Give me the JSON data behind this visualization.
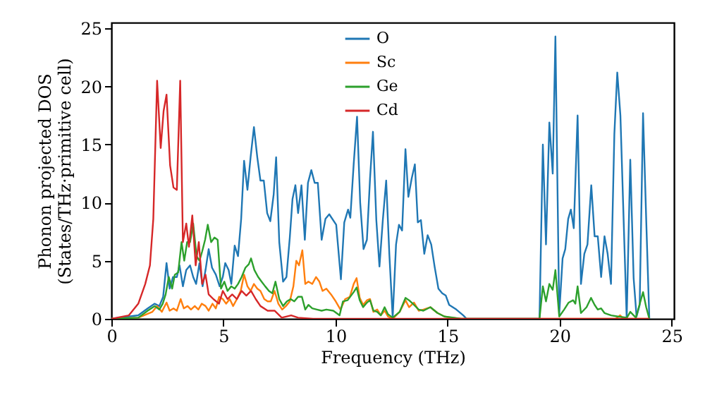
{
  "chart_data": {
    "type": "line",
    "xlabel": "Frequency (THz)",
    "ylabel": "Phonon projected DOS\n(States/THz·primitive cell)",
    "xlim": [
      0,
      25.1
    ],
    "ylim": [
      0,
      25.5
    ],
    "xticks": [
      0,
      5,
      10,
      15,
      20,
      25
    ],
    "yticks": [
      0,
      5,
      10,
      15,
      20,
      25
    ],
    "grid": false,
    "legend": "top",
    "line_style": "solid",
    "marker": "none",
    "series": [
      {
        "name": "O",
        "color": "#1f77b4",
        "x": [
          0,
          1.2,
          1.62,
          1.93,
          2.14,
          2.31,
          2.46,
          2.6,
          2.75,
          2.92,
          3.04,
          3.19,
          3.34,
          3.51,
          3.65,
          3.78,
          3.93,
          4.07,
          4.2,
          4.34,
          4.49,
          4.66,
          4.83,
          4.97,
          5.08,
          5.23,
          5.35,
          5.5,
          5.65,
          5.79,
          5.92,
          6.07,
          6.21,
          6.36,
          6.51,
          6.65,
          6.8,
          6.95,
          7.09,
          7.24,
          7.35,
          7.49,
          7.66,
          7.81,
          7.96,
          8.08,
          8.21,
          8.33,
          8.48,
          8.63,
          8.77,
          8.92,
          9.07,
          9.21,
          9.38,
          9.55,
          9.72,
          10.03,
          10.24,
          10.39,
          10.56,
          10.66,
          10.81,
          10.96,
          11.1,
          11.25,
          11.4,
          11.54,
          11.67,
          11.82,
          11.96,
          12.11,
          12.26,
          12.4,
          12.55,
          12.7,
          12.83,
          12.97,
          13.12,
          13.25,
          13.4,
          13.54,
          13.67,
          13.81,
          13.96,
          14.11,
          14.27,
          14.42,
          14.59,
          14.76,
          14.92,
          15.07,
          15.39,
          15.7,
          15.85,
          19.1,
          19.25,
          19.39,
          19.54,
          19.69,
          19.81,
          19.98,
          20.13,
          20.25,
          20.38,
          20.5,
          20.63,
          20.8,
          20.95,
          21.1,
          21.24,
          21.41,
          21.56,
          21.7,
          21.85,
          22.0,
          22.14,
          22.29,
          22.44,
          22.57,
          22.71,
          22.99,
          23.15,
          23.3,
          23.43,
          23.57,
          23.72,
          23.86,
          24.0
        ],
        "values": [
          0,
          0.3,
          0.9,
          1.3,
          1.1,
          1.9,
          4.8,
          2.6,
          3.6,
          3.6,
          4.6,
          2.8,
          4.2,
          4.6,
          3.6,
          3.0,
          4.8,
          2.8,
          4.2,
          6.0,
          4.4,
          3.8,
          2.8,
          3.6,
          4.8,
          4.2,
          3.0,
          6.3,
          5.4,
          8.6,
          13.6,
          11.1,
          13.9,
          16.5,
          13.9,
          11.9,
          11.9,
          9.1,
          8.4,
          10.7,
          13.9,
          6.6,
          3.2,
          3.6,
          7.0,
          10.3,
          11.5,
          9.1,
          11.5,
          6.8,
          11.7,
          12.8,
          11.7,
          11.7,
          6.8,
          8.6,
          9.0,
          8.1,
          3.4,
          8.3,
          9.4,
          8.7,
          13.3,
          17.4,
          10.0,
          6.0,
          6.8,
          12.1,
          16.1,
          8.5,
          4.5,
          8.5,
          11.9,
          5.6,
          0.1,
          6.4,
          8.1,
          7.6,
          14.6,
          10.5,
          12.1,
          13.3,
          8.3,
          8.5,
          5.6,
          7.2,
          6.4,
          4.5,
          2.6,
          2.2,
          2.0,
          1.2,
          0.8,
          0.3,
          0,
          0,
          15.0,
          6.4,
          16.9,
          12.5,
          24.3,
          0.4,
          5.2,
          6.0,
          8.6,
          9.4,
          7.8,
          17.5,
          3.0,
          5.6,
          6.4,
          11.5,
          7.1,
          7.1,
          3.6,
          7.1,
          5.6,
          3.0,
          15.9,
          21.2,
          17.5,
          0,
          13.7,
          3.5,
          0.2,
          1.2,
          17.7,
          8.6,
          0
        ]
      },
      {
        "name": "Sc",
        "color": "#ff7f0e",
        "x": [
          0,
          1.2,
          1.83,
          2.04,
          2.25,
          2.46,
          2.6,
          2.77,
          2.92,
          3.09,
          3.23,
          3.4,
          3.55,
          3.72,
          3.88,
          4.03,
          4.2,
          4.34,
          4.51,
          4.66,
          4.81,
          4.97,
          5.12,
          5.28,
          5.43,
          5.6,
          5.77,
          5.92,
          6.07,
          6.21,
          6.36,
          6.51,
          6.65,
          6.82,
          6.97,
          7.11,
          7.28,
          7.45,
          7.62,
          7.79,
          7.96,
          8.12,
          8.25,
          8.37,
          8.52,
          8.65,
          8.79,
          8.96,
          9.13,
          9.28,
          9.42,
          9.59,
          9.8,
          10.01,
          10.22,
          10.43,
          10.64,
          10.81,
          10.94,
          11.08,
          11.23,
          11.4,
          11.54,
          11.69,
          11.86,
          12.02,
          12.19,
          12.34,
          12.55,
          12.86,
          13.12,
          13.28,
          13.5,
          13.71,
          13.92,
          14.23,
          14.55,
          14.86,
          15.18,
          15.6,
          19.12,
          22.5,
          22.7,
          22.85,
          24.0
        ],
        "values": [
          0,
          0.1,
          0.6,
          1.1,
          0.6,
          1.4,
          0.7,
          0.9,
          0.7,
          1.7,
          0.9,
          1.1,
          0.8,
          1.1,
          0.8,
          1.3,
          1.1,
          0.7,
          1.3,
          0.9,
          1.9,
          1.7,
          1.3,
          1.7,
          1.1,
          1.7,
          2.4,
          3.8,
          2.8,
          2.4,
          3.0,
          2.6,
          2.4,
          1.7,
          1.5,
          1.5,
          2.4,
          1.3,
          0.8,
          1.1,
          1.5,
          2.8,
          5.0,
          4.6,
          5.9,
          3.0,
          3.2,
          3.0,
          3.6,
          3.2,
          2.4,
          2.6,
          2.1,
          1.5,
          0.8,
          1.7,
          1.9,
          3.0,
          3.5,
          1.8,
          1.2,
          1.6,
          1.7,
          0.6,
          0.8,
          0.3,
          0.7,
          0.2,
          0,
          0.6,
          1.6,
          1.0,
          1.4,
          0.7,
          0.8,
          1.0,
          0.5,
          0.2,
          0.1,
          0,
          0,
          0,
          0.3,
          0,
          0
        ]
      },
      {
        "name": "Ge",
        "color": "#2ca02c",
        "x": [
          0,
          1.2,
          1.62,
          1.93,
          2.14,
          2.29,
          2.42,
          2.56,
          2.71,
          2.83,
          2.98,
          3.13,
          3.25,
          3.38,
          3.51,
          3.65,
          3.8,
          3.93,
          4.05,
          4.18,
          4.3,
          4.45,
          4.6,
          4.74,
          4.89,
          5.04,
          5.18,
          5.35,
          5.5,
          5.65,
          5.81,
          5.98,
          6.13,
          6.23,
          6.38,
          6.55,
          6.7,
          6.86,
          7.03,
          7.18,
          7.32,
          7.49,
          7.66,
          7.83,
          8.0,
          8.16,
          8.33,
          8.5,
          8.65,
          8.79,
          8.96,
          9.17,
          9.38,
          9.59,
          9.9,
          10.18,
          10.33,
          10.54,
          10.81,
          10.94,
          11.08,
          11.23,
          11.4,
          11.54,
          11.69,
          11.86,
          12.02,
          12.19,
          12.34,
          12.55,
          12.86,
          13.12,
          13.28,
          13.5,
          13.71,
          13.92,
          14.23,
          14.55,
          14.86,
          15.28,
          15.6,
          19.1,
          19.25,
          19.39,
          19.54,
          19.69,
          19.81,
          19.98,
          20.2,
          20.4,
          20.6,
          20.7,
          20.8,
          20.95,
          21.2,
          21.4,
          21.56,
          21.7,
          21.85,
          22.0,
          22.3,
          22.6,
          23.0,
          23.15,
          23.4,
          23.72,
          23.86,
          24.0
        ],
        "values": [
          0,
          0.1,
          0.7,
          1.1,
          0.8,
          1.3,
          2.1,
          3.6,
          2.6,
          3.8,
          4.0,
          6.6,
          5.0,
          6.6,
          6.6,
          8.2,
          5.4,
          5.0,
          5.8,
          6.8,
          8.1,
          6.6,
          7.0,
          6.8,
          2.6,
          3.2,
          2.4,
          2.8,
          2.6,
          3.0,
          3.6,
          4.4,
          4.7,
          5.2,
          4.2,
          3.6,
          3.2,
          2.8,
          2.4,
          2.2,
          3.2,
          1.7,
          1.1,
          1.5,
          1.7,
          1.5,
          1.9,
          1.9,
          0.8,
          1.2,
          0.9,
          0.8,
          0.7,
          0.8,
          0.7,
          0.3,
          1.5,
          1.6,
          2.3,
          2.7,
          1.6,
          1.0,
          1.4,
          1.6,
          0.7,
          0.6,
          0.3,
          1.0,
          0.4,
          0.1,
          0.6,
          1.8,
          1.6,
          1.2,
          0.8,
          0.7,
          1.0,
          0.5,
          0.2,
          0.1,
          0,
          0,
          2.8,
          1.5,
          3.0,
          2.5,
          4.2,
          0.2,
          0.8,
          1.4,
          1.6,
          1.3,
          2.8,
          0.5,
          1.0,
          1.8,
          1.2,
          0.8,
          0.9,
          0.5,
          0.3,
          0.2,
          0.1,
          0.6,
          0.1,
          2.3,
          1.0,
          0
        ]
      },
      {
        "name": "Cd",
        "color": "#d62728",
        "x": [
          0,
          0.78,
          1.2,
          1.51,
          1.72,
          1.87,
          2.04,
          2.2,
          2.33,
          2.46,
          2.62,
          2.77,
          2.92,
          3.07,
          3.19,
          3.34,
          3.46,
          3.61,
          3.76,
          3.9,
          4.05,
          4.2,
          4.34,
          4.55,
          4.8,
          4.97,
          5.18,
          5.39,
          5.6,
          5.81,
          6.02,
          6.23,
          6.44,
          6.65,
          6.97,
          7.28,
          7.6,
          8.02,
          8.33,
          9.0,
          24.0
        ],
        "values": [
          0,
          0.3,
          1.3,
          3.0,
          4.6,
          8.6,
          20.5,
          14.7,
          17.9,
          19.3,
          13.2,
          11.3,
          11.1,
          20.5,
          6.6,
          8.2,
          6.2,
          8.9,
          4.6,
          6.6,
          3.0,
          3.8,
          2.1,
          1.7,
          1.3,
          2.4,
          1.7,
          2.1,
          1.7,
          2.4,
          2.0,
          2.4,
          1.7,
          1.1,
          0.7,
          0.7,
          0.1,
          0.3,
          0.1,
          0,
          0
        ]
      }
    ]
  }
}
